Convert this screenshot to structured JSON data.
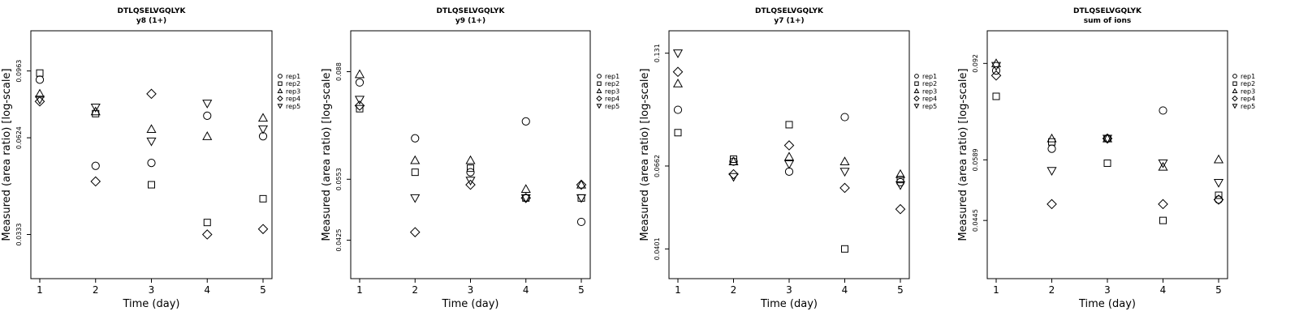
{
  "chart_data": [
    {
      "type": "scatter",
      "title": "DTLQSELVGQLYK",
      "subtitle": "y8 (1+)",
      "xlabel": "Time (day)",
      "ylabel": "Measured (area ratio) [log-scale]",
      "y_scale": "log",
      "x": [
        1,
        2,
        3,
        4,
        5
      ],
      "yticks": [
        0.0333,
        0.0624,
        0.0963
      ],
      "ylim": [
        0.025,
        0.125
      ],
      "legend_position": "right",
      "series": [
        {
          "name": "rep1",
          "marker": "circle",
          "values": [
            0.091,
            0.052,
            0.053,
            0.072,
            0.063
          ]
        },
        {
          "name": "rep2",
          "marker": "square",
          "values": [
            0.095,
            0.073,
            0.046,
            0.036,
            0.042
          ]
        },
        {
          "name": "rep3",
          "marker": "triangle-up",
          "values": [
            0.083,
            0.074,
            0.066,
            0.063,
            0.071
          ]
        },
        {
          "name": "rep4",
          "marker": "diamond",
          "values": [
            0.079,
            0.047,
            0.083,
            0.0333,
            0.0345
          ]
        },
        {
          "name": "rep5",
          "marker": "triangle-down",
          "values": [
            0.08,
            0.076,
            0.061,
            0.078,
            0.066
          ]
        }
      ]
    },
    {
      "type": "scatter",
      "title": "DTLQSELVGQLYK",
      "subtitle": "y9 (1+)",
      "xlabel": "Time (day)",
      "ylabel": "Measured (area ratio) [log-scale]",
      "y_scale": "log",
      "x": [
        1,
        2,
        3,
        4,
        5
      ],
      "yticks": [
        0.0425,
        0.0553,
        0.088
      ],
      "ylim": [
        0.036,
        0.105
      ],
      "legend_position": "right",
      "series": [
        {
          "name": "rep1",
          "marker": "circle",
          "values": [
            0.084,
            0.066,
            0.057,
            0.071,
            0.046
          ]
        },
        {
          "name": "rep2",
          "marker": "square",
          "values": [
            0.075,
            0.057,
            0.058,
            0.051,
            0.051
          ]
        },
        {
          "name": "rep3",
          "marker": "triangle-up",
          "values": [
            0.087,
            0.06,
            0.06,
            0.053,
            0.054
          ]
        },
        {
          "name": "rep4",
          "marker": "diamond",
          "values": [
            0.076,
            0.044,
            0.054,
            0.051,
            0.054
          ]
        },
        {
          "name": "rep5",
          "marker": "triangle-down",
          "values": [
            0.078,
            0.051,
            0.055,
            0.051,
            0.051
          ]
        }
      ]
    },
    {
      "type": "scatter",
      "title": "DTLQSELVGQLYK",
      "subtitle": "y7 (1+)",
      "xlabel": "Time (day)",
      "ylabel": "Measured (area ratio) [log-scale]",
      "y_scale": "log",
      "x": [
        1,
        2,
        3,
        4,
        5
      ],
      "yticks": [
        0.0401,
        0.0662,
        0.131
      ],
      "ylim": [
        0.0335,
        0.15
      ],
      "legend_position": "right",
      "series": [
        {
          "name": "rep1",
          "marker": "circle",
          "values": [
            0.093,
            0.068,
            0.064,
            0.089,
            0.06
          ]
        },
        {
          "name": "rep2",
          "marker": "square",
          "values": [
            0.081,
            0.069,
            0.085,
            0.0401,
            0.061
          ]
        },
        {
          "name": "rep3",
          "marker": "triangle-up",
          "values": [
            0.109,
            0.068,
            0.07,
            0.068,
            0.063
          ]
        },
        {
          "name": "rep4",
          "marker": "diamond",
          "values": [
            0.117,
            0.063,
            0.075,
            0.058,
            0.051
          ]
        },
        {
          "name": "rep5",
          "marker": "triangle-down",
          "values": [
            0.131,
            0.062,
            0.067,
            0.064,
            0.059
          ]
        }
      ]
    },
    {
      "type": "scatter",
      "title": "DTLQSELVGQLYK",
      "subtitle": "sum of ions",
      "xlabel": "Time (day)",
      "ylabel": "Measured (area ratio) [log-scale]",
      "y_scale": "log",
      "x": [
        1,
        2,
        3,
        4,
        5
      ],
      "yticks": [
        0.0445,
        0.0589,
        0.092
      ],
      "ylim": [
        0.034,
        0.107
      ],
      "legend_position": "right",
      "series": [
        {
          "name": "rep1",
          "marker": "circle",
          "values": [
            0.089,
            0.062,
            0.065,
            0.074,
            0.049
          ]
        },
        {
          "name": "rep2",
          "marker": "square",
          "values": [
            0.079,
            0.064,
            0.058,
            0.0445,
            0.05
          ]
        },
        {
          "name": "rep3",
          "marker": "triangle-up",
          "values": [
            0.092,
            0.065,
            0.065,
            0.057,
            0.059
          ]
        },
        {
          "name": "rep4",
          "marker": "diamond",
          "values": [
            0.087,
            0.048,
            0.065,
            0.048,
            0.049
          ]
        },
        {
          "name": "rep5",
          "marker": "triangle-down",
          "values": [
            0.091,
            0.056,
            0.065,
            0.058,
            0.053
          ]
        }
      ]
    }
  ]
}
